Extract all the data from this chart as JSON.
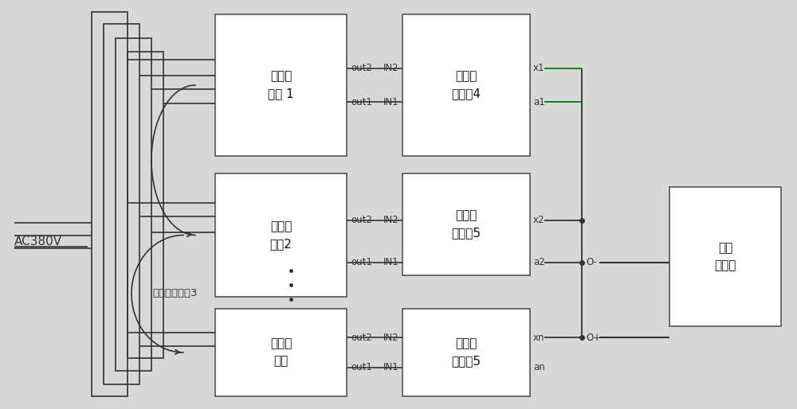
{
  "bg_color": "#d8d8d8",
  "box_color": "#ffffff",
  "box_edge_color": "#555555",
  "line_color": "#333333",
  "green_line_color": "#008000",
  "text_color": "#111111",
  "ac_label": "AC380V",
  "main_vf_label": "主变频\n电源 1",
  "slave_vf2_label": "从变频\n电源2",
  "slave_vfn_label": "从变频\n电源",
  "main_reactor_label": "主限流\n电抗器4",
  "slave_reactor2_label": "从限流\n电抗器5",
  "slave_reactorn_label": "从限流\n电抗器5",
  "excitation_label": "励磁\n变压器",
  "fiber_label": "光纤并联回路3"
}
